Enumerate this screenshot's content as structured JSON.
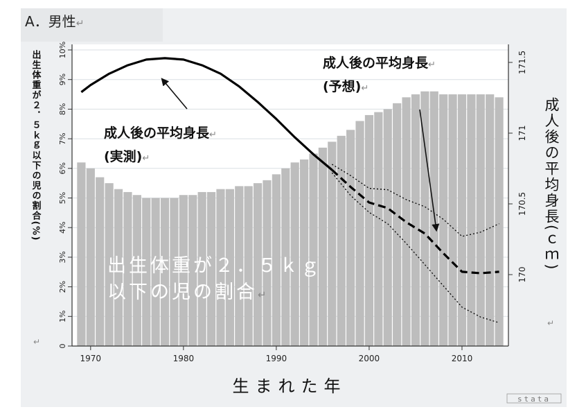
{
  "panel_label": "A．男性",
  "return_mark": "↵",
  "chart_data": {
    "type": "bar+line",
    "xlabel": "生まれた年",
    "ylabel_left": "出生体重が２．５ｋｇ以下の児の割合(%)",
    "ylabel_right": "成人後の平均身長(ｃｍ)",
    "xlim": [
      1968,
      2015
    ],
    "ylim_left": [
      0,
      10
    ],
    "ylim_right": [
      169.65,
      171.5
    ],
    "x_ticks": [
      1970,
      1980,
      1990,
      2000,
      2010
    ],
    "y_left_ticks": [
      "0",
      "1%",
      "2%",
      "3%",
      "4%",
      "5%",
      "6%",
      "7%",
      "8%",
      "9%",
      "10%"
    ],
    "y_right_ticks": [
      "170",
      "170.5",
      "171",
      "171.5"
    ],
    "grid": true,
    "bars": {
      "name": "出生体重が２．５ｋｇ以下の児の割合",
      "x": [
        1969,
        1970,
        1971,
        1972,
        1973,
        1974,
        1975,
        1976,
        1977,
        1978,
        1979,
        1980,
        1981,
        1982,
        1983,
        1984,
        1985,
        1986,
        1987,
        1988,
        1989,
        1990,
        1991,
        1992,
        1993,
        1994,
        1995,
        1996,
        1997,
        1998,
        1999,
        2000,
        2001,
        2002,
        2003,
        2004,
        2005,
        2006,
        2007,
        2008,
        2009,
        2010,
        2011,
        2012,
        2013,
        2014
      ],
      "values": [
        6.2,
        6.0,
        5.7,
        5.5,
        5.3,
        5.2,
        5.1,
        5.0,
        5.0,
        5.0,
        5.0,
        5.1,
        5.1,
        5.2,
        5.2,
        5.3,
        5.3,
        5.4,
        5.4,
        5.5,
        5.6,
        5.8,
        6.0,
        6.2,
        6.3,
        6.5,
        6.7,
        6.9,
        7.1,
        7.3,
        7.6,
        7.8,
        7.9,
        8.0,
        8.2,
        8.4,
        8.5,
        8.6,
        8.6,
        8.5,
        8.5,
        8.5,
        8.5,
        8.5,
        8.5,
        8.4
      ]
    },
    "series": [
      {
        "name": "成人後の平均身長（実測）",
        "style": "solid",
        "x": [
          1969,
          1970,
          1972,
          1974,
          1976,
          1978,
          1980,
          1982,
          1984,
          1986,
          1988,
          1990,
          1992,
          1994,
          1996
        ],
        "values": [
          171.29,
          171.34,
          171.42,
          171.48,
          171.52,
          171.53,
          171.52,
          171.48,
          171.42,
          171.33,
          171.22,
          171.1,
          170.97,
          170.85,
          170.74
        ]
      },
      {
        "name": "成人後の平均身長（予想）",
        "style": "dashed",
        "x": [
          1996,
          1998,
          2000,
          2002,
          2004,
          2006,
          2008,
          2010,
          2012,
          2014
        ],
        "values": [
          170.74,
          170.62,
          170.51,
          170.47,
          170.37,
          170.29,
          170.15,
          170.02,
          170.01,
          170.02
        ]
      },
      {
        "name": "upper bound",
        "style": "dotted",
        "x": [
          1996,
          1998,
          2000,
          2002,
          2004,
          2006,
          2008,
          2010,
          2012,
          2014
        ],
        "values": [
          170.78,
          170.7,
          170.61,
          170.6,
          170.53,
          170.48,
          170.39,
          170.27,
          170.3,
          170.36
        ]
      },
      {
        "name": "lower bound",
        "style": "dotted",
        "x": [
          1996,
          1998,
          2000,
          2002,
          2004,
          2006,
          2008,
          2010,
          2012,
          2014
        ],
        "values": [
          170.72,
          170.56,
          170.44,
          170.36,
          170.22,
          170.07,
          169.92,
          169.77,
          169.7,
          169.66
        ]
      }
    ],
    "annotations": [
      {
        "line1": "成人後の平均身長",
        "line2": "(実測)"
      },
      {
        "line1": "成人後の平均身長",
        "line2": "(予想)"
      },
      {
        "line1": "出生体重が２．５ｋｇ",
        "line2": "以下の児の割合"
      }
    ],
    "bar_color": "#bdbdbd",
    "line_color": "#000000",
    "plot_bg": "#ffffff",
    "grid_color": "#d9dfe3"
  },
  "watermark": "stata"
}
